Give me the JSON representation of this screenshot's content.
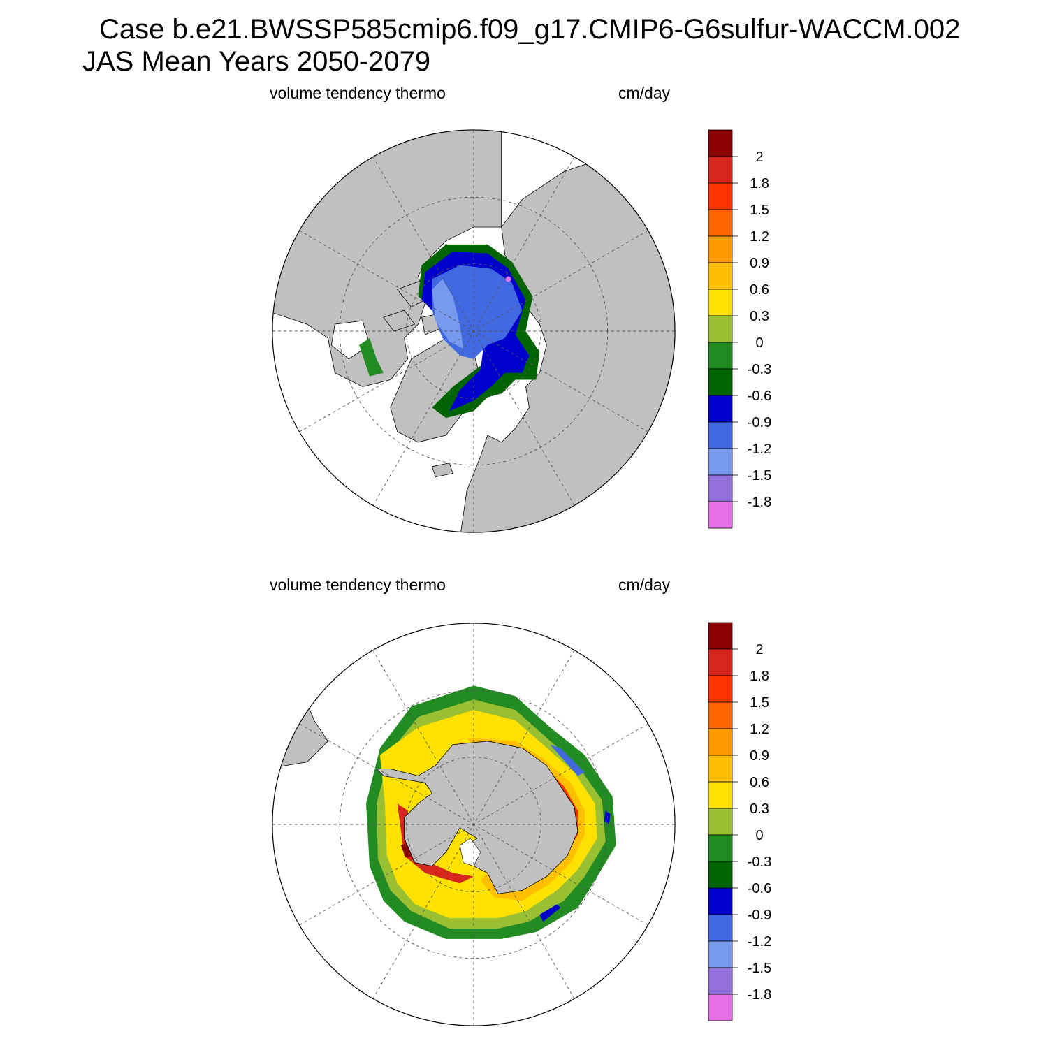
{
  "title": {
    "line1": "Case b.e21.BWSSP585cmip6.f09_g17.CMIP6-G6sulfur-WACCM.002",
    "line2": "JAS Mean   Years 2050-2079"
  },
  "panels": [
    {
      "id": "north",
      "left_label": "volume tendency thermo",
      "right_label": "cm/day"
    },
    {
      "id": "south",
      "left_label": "volume tendency thermo",
      "right_label": "cm/day"
    }
  ],
  "colorbar": {
    "colors": [
      "#8b0000",
      "#d7261e",
      "#ff3300",
      "#ff6600",
      "#ff9900",
      "#ffbf00",
      "#ffe100",
      "#99bf33",
      "#228b22",
      "#006400",
      "#0000cd",
      "#4169e1",
      "#7799ee",
      "#9370db",
      "#e66ee6"
    ],
    "labels": [
      "2",
      "1.8",
      "1.5",
      "1.2",
      "0.9",
      "0.6",
      "0.3",
      "0",
      "-0.3",
      "-0.6",
      "-0.9",
      "-1.2",
      "-1.5",
      "-1.8"
    ]
  },
  "map_colors": {
    "land": "#c0c0c0",
    "ocean": "#ffffff",
    "grid": "#555555"
  }
}
